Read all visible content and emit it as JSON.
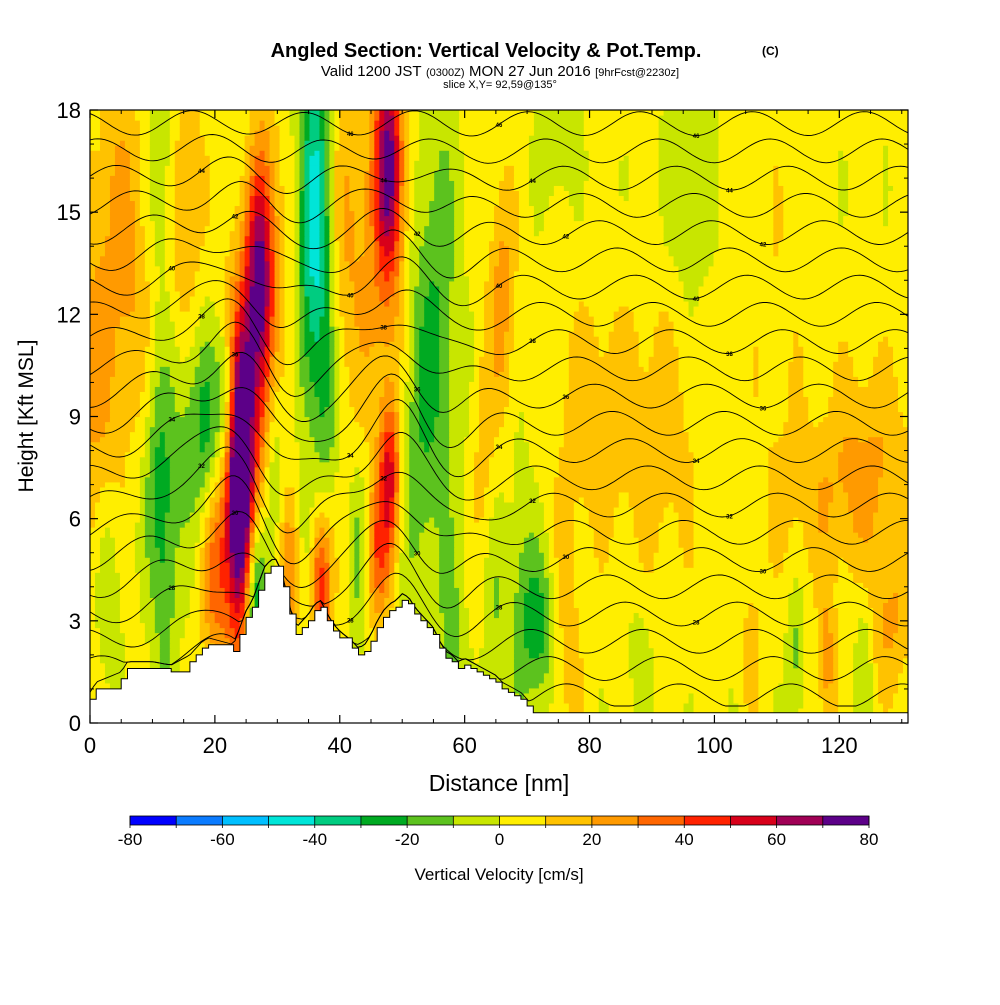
{
  "chart_data": {
    "type": "heatmap",
    "title": "Angled Section: Vertical Velocity & Pot.Temp.",
    "title_unit": "(C)",
    "subtitle_prefix": "Valid 1200 JST",
    "subtitle_zulu": "(0300Z)",
    "subtitle_date": "MON 27 Jun 2016",
    "subtitle_fcst": "[9hrFcst@2230z]",
    "slice_label": "slice X,Y= 92,59@135°",
    "xlabel": "Distance [nm]",
    "ylabel": "Height [Kft MSL]",
    "xlim": [
      0,
      131
    ],
    "ylim": [
      0,
      18
    ],
    "x_ticks": [
      0,
      20,
      40,
      60,
      80,
      100,
      120
    ],
    "y_ticks": [
      0,
      3,
      6,
      9,
      12,
      15,
      18
    ],
    "grid": false,
    "background_value_cm_s": 3,
    "colorbar": {
      "label": "Vertical Velocity [cm/s]",
      "boundaries": [
        -80,
        -70,
        -60,
        -50,
        -40,
        -30,
        -20,
        -10,
        0,
        10,
        20,
        30,
        40,
        50,
        60,
        70,
        80
      ],
      "tick_labels": [
        "-80",
        "-60",
        "-40",
        "-20",
        "0",
        "20",
        "40",
        "60",
        "80"
      ],
      "colors": [
        "#0000ff",
        "#0a7bff",
        "#00bfff",
        "#00e5d8",
        "#00cc80",
        "#00aa22",
        "#5cc21e",
        "#c8e600",
        "#ffee00",
        "#ffc200",
        "#ff9a00",
        "#ff6600",
        "#ff2200",
        "#d8001a",
        "#a00055",
        "#5c0088"
      ]
    },
    "terrain": {
      "x": [
        0,
        1,
        5,
        6,
        10,
        13,
        16,
        17,
        18,
        19,
        23,
        24,
        25,
        26,
        27,
        28,
        29,
        30,
        31,
        32,
        33,
        34,
        35,
        36,
        37,
        38,
        39,
        40,
        42,
        43,
        44,
        45,
        46,
        47,
        48,
        49,
        50,
        51,
        52,
        53,
        54,
        55,
        56,
        57,
        58,
        59,
        60,
        61,
        62,
        63,
        64,
        65,
        66,
        67,
        68,
        69,
        70,
        71,
        72,
        73,
        131
      ],
      "height_kft": [
        0.7,
        1.0,
        1.3,
        1.6,
        1.6,
        1.5,
        1.8,
        2.0,
        2.2,
        2.3,
        2.1,
        2.6,
        3.1,
        3.4,
        3.9,
        4.4,
        4.6,
        4.6,
        4.0,
        3.2,
        2.6,
        2.8,
        3.0,
        3.3,
        3.4,
        3.0,
        2.7,
        2.5,
        2.2,
        2.0,
        2.1,
        2.4,
        2.8,
        3.1,
        3.3,
        3.4,
        3.6,
        3.5,
        3.2,
        3.0,
        2.8,
        2.6,
        2.2,
        1.9,
        1.8,
        1.6,
        1.7,
        1.6,
        1.5,
        1.4,
        1.3,
        1.2,
        1.0,
        0.9,
        0.8,
        0.7,
        0.5,
        0.3,
        0.3,
        0.3,
        0.3
      ]
    },
    "vertical_velocity_features": [
      {
        "x": 24,
        "y": 7.2,
        "sx": 1.4,
        "sy": 2.8,
        "value": 78
      },
      {
        "x": 24.5,
        "y": 6.5,
        "sx": 2.5,
        "sy": 4.0,
        "value": 35
      },
      {
        "x": 26.5,
        "y": 3.8,
        "sx": 1.3,
        "sy": 2.0,
        "value": -55
      },
      {
        "x": 27,
        "y": 13.2,
        "sx": 1.6,
        "sy": 2.5,
        "value": 55
      },
      {
        "x": 27.5,
        "y": 12.5,
        "sx": 3.0,
        "sy": 4.0,
        "value": 22
      },
      {
        "x": 47.8,
        "y": 16.5,
        "sx": 1.5,
        "sy": 2.2,
        "value": 55
      },
      {
        "x": 47.5,
        "y": 14.0,
        "sx": 3.0,
        "sy": 4.0,
        "value": 22
      },
      {
        "x": 48,
        "y": 7.3,
        "sx": 1.2,
        "sy": 1.5,
        "value": 45
      },
      {
        "x": 46,
        "y": 5.0,
        "sx": 1.5,
        "sy": 1.5,
        "value": 32
      },
      {
        "x": 37,
        "y": 4.0,
        "sx": 1.2,
        "sy": 1.6,
        "value": 45
      },
      {
        "x": 32,
        "y": 4.5,
        "sx": 1.5,
        "sy": 1.6,
        "value": 28
      },
      {
        "x": 20,
        "y": 4.5,
        "sx": 1.6,
        "sy": 2.0,
        "value": 28
      },
      {
        "x": 15,
        "y": 15.0,
        "sx": 2.0,
        "sy": 3.0,
        "value": 25
      },
      {
        "x": 40,
        "y": 14.0,
        "sx": 3.0,
        "sy": 4.0,
        "value": 18
      },
      {
        "x": 0.5,
        "y": 10.0,
        "sx": 3.0,
        "sy": 4.0,
        "value": 18
      },
      {
        "x": 55.5,
        "y": 11.5,
        "sx": 2.5,
        "sy": 5.0,
        "value": -22
      },
      {
        "x": 52,
        "y": 9.0,
        "sx": 2.0,
        "sy": 4.0,
        "value": -15
      },
      {
        "x": 36,
        "y": 16.0,
        "sx": 2.0,
        "sy": 3.5,
        "value": -45
      },
      {
        "x": 36.5,
        "y": 12.0,
        "sx": 2.0,
        "sy": 2.5,
        "value": -22
      },
      {
        "x": 38,
        "y": 9.0,
        "sx": 1.5,
        "sy": 2.0,
        "value": -18
      },
      {
        "x": 29.5,
        "y": 8.0,
        "sx": 1.2,
        "sy": 2.5,
        "value": -20
      },
      {
        "x": 22,
        "y": 9.5,
        "sx": 1.2,
        "sy": 1.6,
        "value": -32
      },
      {
        "x": 19,
        "y": 8.5,
        "sx": 1.5,
        "sy": 2.0,
        "value": -22
      },
      {
        "x": 11,
        "y": 7.5,
        "sx": 1.8,
        "sy": 2.5,
        "value": -22
      },
      {
        "x": 16,
        "y": 9.0,
        "sx": 2.0,
        "sy": 2.5,
        "value": -18
      },
      {
        "x": 12,
        "y": 16.0,
        "sx": 2.0,
        "sy": 3.0,
        "value": -18
      },
      {
        "x": 25.5,
        "y": 15.5,
        "sx": 1.5,
        "sy": 2.5,
        "value": -15
      },
      {
        "x": 72,
        "y": 2.8,
        "sx": 2.0,
        "sy": 1.6,
        "value": -28
      },
      {
        "x": 69,
        "y": 4.0,
        "sx": 1.5,
        "sy": 3.0,
        "value": -12
      },
      {
        "x": 96,
        "y": 16.5,
        "sx": 2.5,
        "sy": 3.0,
        "value": -14
      },
      {
        "x": 75,
        "y": 17.5,
        "sx": 2.0,
        "sy": 1.5,
        "value": -14
      },
      {
        "x": 43,
        "y": 5.0,
        "sx": 1.2,
        "sy": 2.0,
        "value": -18
      },
      {
        "x": 34,
        "y": 5.0,
        "sx": 1.2,
        "sy": 1.8,
        "value": -18
      },
      {
        "x": 12,
        "y": 4.0,
        "sx": 1.5,
        "sy": 2.5,
        "value": -16
      },
      {
        "x": 3,
        "y": 3.8,
        "sx": 1.5,
        "sy": 2.0,
        "value": -14
      },
      {
        "x": 65,
        "y": 3.0,
        "sx": 1.5,
        "sy": 2.5,
        "value": -12
      },
      {
        "x": 58,
        "y": 2.0,
        "sx": 1.5,
        "sy": 2.0,
        "value": -15
      },
      {
        "x": 113,
        "y": 2.0,
        "sx": 1.0,
        "sy": 1.5,
        "value": -16
      },
      {
        "x": 124,
        "y": 2.0,
        "sx": 1.0,
        "sy": 1.6,
        "value": -14
      },
      {
        "x": 88,
        "y": 2.0,
        "sx": 1.5,
        "sy": 1.5,
        "value": -8
      },
      {
        "x": 76,
        "y": 2.5,
        "sx": 2.0,
        "sy": 2.5,
        "value": 13
      },
      {
        "x": 80,
        "y": 9.0,
        "sx": 4.0,
        "sy": 2.5,
        "value": 13
      },
      {
        "x": 91,
        "y": 8.5,
        "sx": 5.0,
        "sy": 3.0,
        "value": 13
      },
      {
        "x": 120,
        "y": 6.5,
        "sx": 8.0,
        "sy": 1.8,
        "value": 14
      },
      {
        "x": 125,
        "y": 8.5,
        "sx": 5.0,
        "sy": 2.0,
        "value": 11
      },
      {
        "x": 128,
        "y": 3.0,
        "sx": 2.5,
        "sy": 1.5,
        "value": 18
      },
      {
        "x": 118,
        "y": 1.8,
        "sx": 1.0,
        "sy": 1.5,
        "value": 22
      },
      {
        "x": 106,
        "y": 2.0,
        "sx": 1.0,
        "sy": 1.5,
        "value": 14
      },
      {
        "x": 110,
        "y": 12.0,
        "sx": 3.0,
        "sy": 4.0,
        "value": 6
      },
      {
        "x": 66,
        "y": 12.5,
        "sx": 1.5,
        "sy": 2.5,
        "value": 22
      },
      {
        "x": 63,
        "y": 8.0,
        "sx": 1.2,
        "sy": 2.5,
        "value": 12
      },
      {
        "x": 7,
        "y": 12.0,
        "sx": 3.0,
        "sy": 3.0,
        "value": 12
      },
      {
        "x": 5,
        "y": 16.0,
        "sx": 3.0,
        "sy": 3.0,
        "value": 12
      }
    ],
    "potential_temperature_contours": {
      "unit": "C",
      "levels": [
        25,
        26,
        27,
        28,
        29,
        30,
        31,
        32,
        33,
        34,
        35,
        36,
        37,
        38,
        39,
        40,
        41,
        42,
        43,
        44,
        45,
        46,
        47,
        48
      ],
      "labelled_levels": [
        "28",
        "30",
        "32",
        "34",
        "36",
        "38",
        "40",
        "42",
        "44",
        "46"
      ],
      "lapse_deg_per_kft": 1.25,
      "base_theta_at_surface": 24,
      "mountain_waves": [
        {
          "x": 24,
          "amplitude_kft": 1.6,
          "width_nm": 4.5
        },
        {
          "x": 31,
          "amplitude_kft": -1.0,
          "width_nm": 4.0
        },
        {
          "x": 49,
          "amplitude_kft": 1.4,
          "width_nm": 4.0
        },
        {
          "x": 57,
          "amplitude_kft": -0.6,
          "width_nm": 4.0
        },
        {
          "x": 13,
          "amplitude_kft": 0.6,
          "width_nm": 5.0
        }
      ]
    }
  }
}
